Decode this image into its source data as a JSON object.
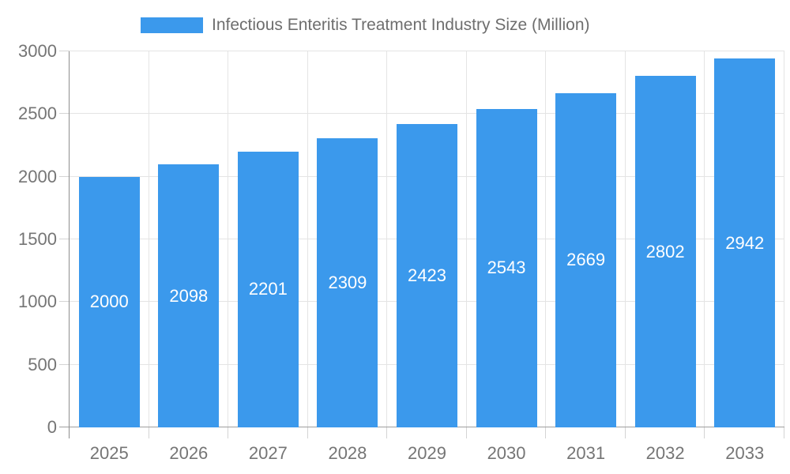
{
  "chart_data": {
    "type": "bar",
    "title": "Infectious Enteritis Treatment Industry Size (Million)",
    "categories": [
      "2025",
      "2026",
      "2027",
      "2028",
      "2029",
      "2030",
      "2031",
      "2032",
      "2033"
    ],
    "values": [
      2000,
      2098,
      2201,
      2309,
      2423,
      2543,
      2669,
      2802,
      2942
    ],
    "xlabel": "",
    "ylabel": "",
    "ylim": [
      0,
      3000
    ],
    "ytick_interval": 500,
    "yticks": [
      0,
      500,
      1000,
      1500,
      2000,
      2500,
      3000
    ],
    "grid": true,
    "legend_position": "top",
    "bar_labels_inside": true
  },
  "colors": {
    "bar": "#3b99ec",
    "bar_label": "#ffffff",
    "axis_text": "#757575",
    "legend_text": "#6e6e6e",
    "gridline": "#e4e4e4",
    "axis_line": "#8f8f8f",
    "baseline": "#9e9e9e",
    "minor_tick": "#d4d4d4"
  }
}
